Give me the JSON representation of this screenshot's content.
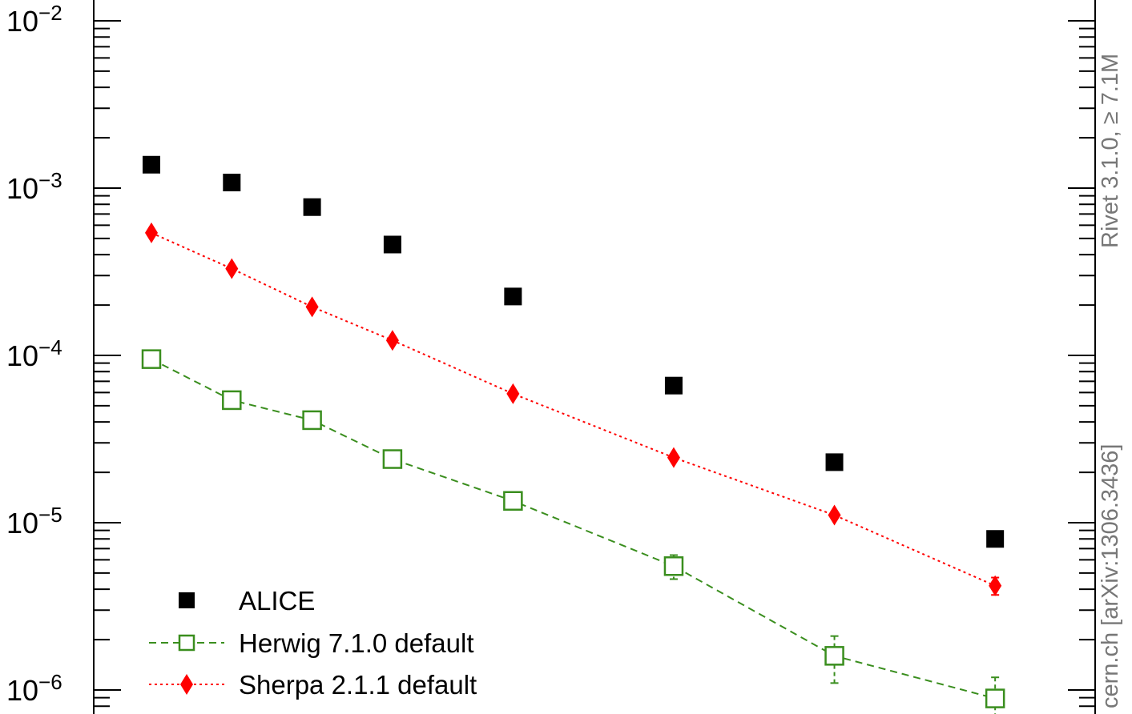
{
  "chart_data": {
    "type": "scatter",
    "yscale": "log",
    "ylim": [
      8e-07,
      0.0125
    ],
    "xlim": [
      0.5,
      11.5
    ],
    "y_tick_labels": [
      {
        "base": "10",
        "exp": "−2",
        "value": 0.01
      },
      {
        "base": "10",
        "exp": "−3",
        "value": 0.001
      },
      {
        "base": "10",
        "exp": "−4",
        "value": 0.0001
      },
      {
        "base": "10",
        "exp": "−5",
        "value": 1e-05
      },
      {
        "base": "10",
        "exp": "−6",
        "value": 1e-06
      }
    ],
    "x": [
      1,
      2,
      3,
      4,
      5.5,
      7.5,
      9.5,
      11.5
    ],
    "series": [
      {
        "name": "ALICE",
        "marker": "filled-square",
        "color": "#000000",
        "line": "none",
        "values": [
          0.00138,
          0.00108,
          0.00077,
          0.00046,
          0.000225,
          6.6e-05,
          2.3e-05,
          8e-06
        ]
      },
      {
        "name": "Herwig 7.1.0 default",
        "marker": "open-square",
        "color": "#3a8e1e",
        "line": "dashed",
        "values": [
          9.5e-05,
          5.4e-05,
          4.1e-05,
          2.4e-05,
          1.35e-05,
          5.5e-06,
          1.6e-06,
          8.9e-07
        ],
        "errors": [
          2e-06,
          2e-06,
          1.5e-06,
          1e-06,
          7e-07,
          9e-07,
          5e-07,
          3e-07
        ]
      },
      {
        "name": "Sherpa 2.1.1 default",
        "marker": "filled-diamond",
        "color": "#ff0000",
        "line": "dotted",
        "values": [
          0.00054,
          0.00033,
          0.000195,
          0.000123,
          5.9e-05,
          2.45e-05,
          1.11e-05,
          4.2e-06
        ],
        "errors": [
          0,
          0,
          0,
          0,
          0,
          0,
          0,
          5e-07
        ]
      }
    ],
    "legend_position": "bottom-left",
    "grid": false
  },
  "side_labels": {
    "rivet": "Rivet 3.1.0, ≥ 7.1M",
    "source": "cern.ch [arXiv:1306.3436]"
  }
}
